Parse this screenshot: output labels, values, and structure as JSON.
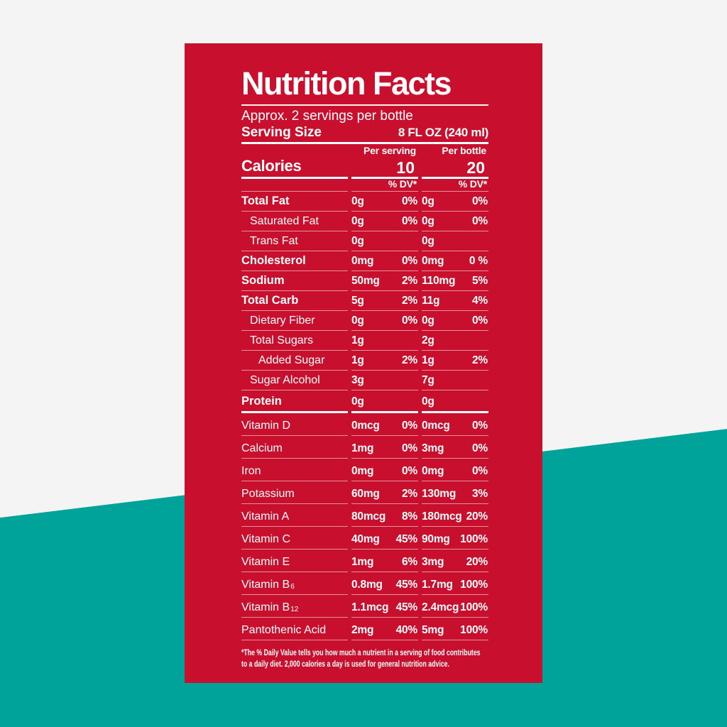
{
  "colors": {
    "background_gray": "#f4f4f4",
    "background_teal": "#00a39a",
    "panel_red": "#c8102e",
    "text_white": "#ffffff"
  },
  "panel": {
    "title": "Nutrition Facts",
    "servings_note": "Approx. 2 servings per bottle",
    "serving_size_label": "Serving Size",
    "serving_size_value": "8 FL OZ (240 ml)",
    "columns": {
      "per_serving": "Per serving",
      "per_bottle": "Per bottle"
    },
    "calories": {
      "label": "Calories",
      "per_serving": "10",
      "per_bottle": "20"
    },
    "dv_header": "% DV*",
    "rows": [
      {
        "name": "Total Fat",
        "indent": 0,
        "bold": true,
        "tall": false,
        "section": false,
        "serving_amount": "0g",
        "serving_dv": "0%",
        "bottle_amount": "0g",
        "bottle_dv": "0%"
      },
      {
        "name": "Saturated Fat",
        "indent": 1,
        "bold": false,
        "tall": false,
        "section": false,
        "serving_amount": "0g",
        "serving_dv": "0%",
        "bottle_amount": "0g",
        "bottle_dv": "0%"
      },
      {
        "name": "Trans Fat",
        "indent": 1,
        "bold": false,
        "tall": false,
        "section": false,
        "serving_amount": "0g",
        "serving_dv": "",
        "bottle_amount": "0g",
        "bottle_dv": ""
      },
      {
        "name": "Cholesterol",
        "indent": 0,
        "bold": true,
        "tall": false,
        "section": false,
        "serving_amount": "0mg",
        "serving_dv": "0%",
        "bottle_amount": "0mg",
        "bottle_dv": "0 %"
      },
      {
        "name": "Sodium",
        "indent": 0,
        "bold": true,
        "tall": false,
        "section": false,
        "serving_amount": "50mg",
        "serving_dv": "2%",
        "bottle_amount": "110mg",
        "bottle_dv": "5%"
      },
      {
        "name": "Total Carb",
        "indent": 0,
        "bold": true,
        "tall": false,
        "section": false,
        "serving_amount": "5g",
        "serving_dv": "2%",
        "bottle_amount": "11g",
        "bottle_dv": "4%"
      },
      {
        "name": "Dietary Fiber",
        "indent": 1,
        "bold": false,
        "tall": false,
        "section": false,
        "serving_amount": "0g",
        "serving_dv": "0%",
        "bottle_amount": "0g",
        "bottle_dv": "0%"
      },
      {
        "name": "Total Sugars",
        "indent": 1,
        "bold": false,
        "tall": false,
        "section": false,
        "serving_amount": "1g",
        "serving_dv": "",
        "bottle_amount": "2g",
        "bottle_dv": ""
      },
      {
        "name": "Added Sugar",
        "indent": 2,
        "bold": false,
        "tall": false,
        "section": false,
        "serving_amount": "1g",
        "serving_dv": "2%",
        "bottle_amount": "1g",
        "bottle_dv": "2%"
      },
      {
        "name": "Sugar Alcohol",
        "indent": 1,
        "bold": false,
        "tall": false,
        "section": false,
        "serving_amount": "3g",
        "serving_dv": "",
        "bottle_amount": "7g",
        "bottle_dv": ""
      },
      {
        "name": "Protein",
        "indent": 0,
        "bold": true,
        "tall": true,
        "section": true,
        "serving_amount": "0g",
        "serving_dv": "",
        "bottle_amount": "0g",
        "bottle_dv": ""
      },
      {
        "name": "Vitamin D",
        "indent": 0,
        "bold": false,
        "tall": true,
        "section": false,
        "serving_amount": "0mcg",
        "serving_dv": "0%",
        "bottle_amount": "0mcg",
        "bottle_dv": "0%"
      },
      {
        "name": "Calcium",
        "indent": 0,
        "bold": false,
        "tall": true,
        "section": false,
        "serving_amount": "1mg",
        "serving_dv": "0%",
        "bottle_amount": "3mg",
        "bottle_dv": "0%"
      },
      {
        "name": "Iron",
        "indent": 0,
        "bold": false,
        "tall": true,
        "section": false,
        "serving_amount": "0mg",
        "serving_dv": "0%",
        "bottle_amount": "0mg",
        "bottle_dv": "0%"
      },
      {
        "name": "Potassium",
        "indent": 0,
        "bold": false,
        "tall": true,
        "section": false,
        "serving_amount": "60mg",
        "serving_dv": "2%",
        "bottle_amount": "130mg",
        "bottle_dv": "3%"
      },
      {
        "name": "Vitamin A",
        "indent": 0,
        "bold": false,
        "tall": true,
        "section": false,
        "serving_amount": "80mcg",
        "serving_dv": "8%",
        "bottle_amount": "180mcg",
        "bottle_dv": "20%"
      },
      {
        "name": "Vitamin C",
        "indent": 0,
        "bold": false,
        "tall": true,
        "section": false,
        "serving_amount": "40mg",
        "serving_dv": "45%",
        "bottle_amount": "90mg",
        "bottle_dv": "100%"
      },
      {
        "name": "Vitamin E",
        "indent": 0,
        "bold": false,
        "tall": true,
        "section": false,
        "serving_amount": "1mg",
        "serving_dv": "6%",
        "bottle_amount": "3mg",
        "bottle_dv": "20%"
      },
      {
        "name": "Vitamin B",
        "sub": "6",
        "indent": 0,
        "bold": false,
        "tall": true,
        "section": false,
        "serving_amount": "0.8mg",
        "serving_dv": "45%",
        "bottle_amount": "1.7mg",
        "bottle_dv": "100%"
      },
      {
        "name": "Vitamin B",
        "sub": "12",
        "indent": 0,
        "bold": false,
        "tall": true,
        "section": false,
        "serving_amount": "1.1mcg",
        "serving_dv": "45%",
        "bottle_amount": "2.4mcg",
        "bottle_dv": "100%"
      },
      {
        "name": "Pantothenic Acid",
        "indent": 0,
        "bold": false,
        "tall": true,
        "section": false,
        "serving_amount": "2mg",
        "serving_dv": "40%",
        "bottle_amount": "5mg",
        "bottle_dv": "100%"
      }
    ],
    "footnote_lines": [
      "*The % Daily Value tells you how much a nutrient in a serving of food contributes",
      "to a daily diet. 2,000 calories a day is used for general nutrition advice."
    ]
  }
}
